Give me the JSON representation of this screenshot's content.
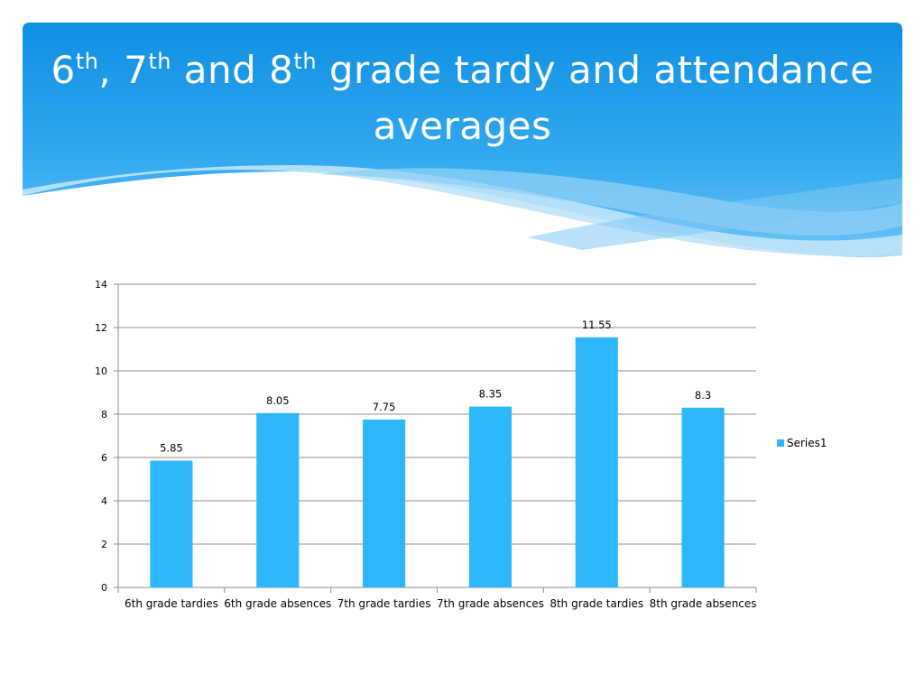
{
  "slide": {
    "title_parts": [
      {
        "text": "6"
      },
      {
        "sup": "th"
      },
      {
        "text": ", 7"
      },
      {
        "sup": "th"
      },
      {
        "text": " and 8"
      },
      {
        "sup": "th"
      },
      {
        "text": " grade tardy and attendance averages"
      }
    ],
    "header_color": "#1596e6",
    "wave_color": "#9ed5f7"
  },
  "chart_data": {
    "type": "bar",
    "categories": [
      "6th grade tardies",
      "6th grade absences",
      "7th grade tardies",
      "7th grade absences",
      "8th grade tardies",
      "8th grade absences"
    ],
    "series": [
      {
        "name": "Series1",
        "values": [
          5.85,
          8.05,
          7.75,
          8.35,
          11.55,
          8.3
        ],
        "color": "#2eb6fb"
      }
    ],
    "data_labels": [
      "5.85",
      "8.05",
      "7.75",
      "8.35",
      "11.55",
      "8.3"
    ],
    "yticks": [
      0,
      2,
      4,
      6,
      8,
      10,
      12,
      14
    ],
    "ylim": [
      0,
      14
    ],
    "grid": true,
    "legend": "right"
  }
}
